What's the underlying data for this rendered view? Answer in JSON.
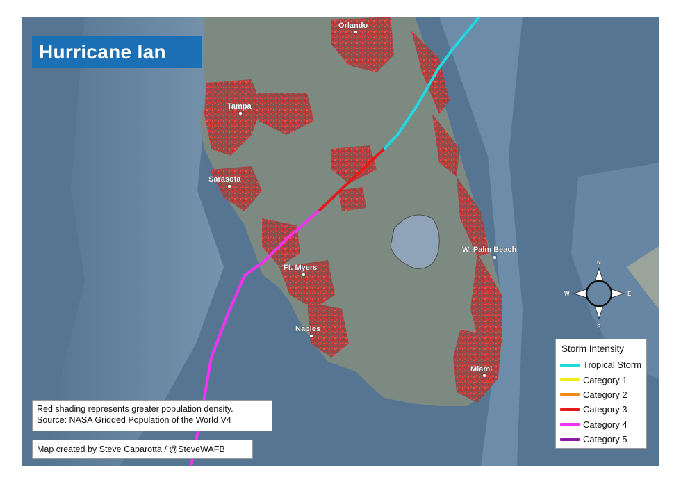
{
  "title": "Hurricane Ian",
  "cities": [
    {
      "name": "Orlando"
    },
    {
      "name": "Tampa"
    },
    {
      "name": "Sarasota"
    },
    {
      "name": "Ft. Myers"
    },
    {
      "name": "Naples"
    },
    {
      "name": "W. Palm Beach"
    },
    {
      "name": "Miami"
    }
  ],
  "notes": {
    "line1": "Red shading represents greater population density.",
    "line2": "Source: NASA Gridded Population of the World V4",
    "credit": "Map created by Steve Caparotta / @SteveWAFB"
  },
  "legend": {
    "title": "Storm Intensity",
    "items": [
      {
        "label": "Tropical Storm",
        "color": "#22d8e0"
      },
      {
        "label": "Category 1",
        "color": "#f2ea1a"
      },
      {
        "label": "Category 2",
        "color": "#f08a16"
      },
      {
        "label": "Category 3",
        "color": "#e21b1b"
      },
      {
        "label": "Category 4",
        "color": "#f233f0"
      },
      {
        "label": "Category 5",
        "color": "#8a1aa8"
      }
    ]
  },
  "compass": {
    "n": "N",
    "s": "S",
    "e": "E",
    "w": "W"
  },
  "colors": {
    "ocean": "#5a7a98",
    "land": "#7d8a82",
    "population": "#e0282b",
    "title_bg": "#1a6fb5"
  }
}
